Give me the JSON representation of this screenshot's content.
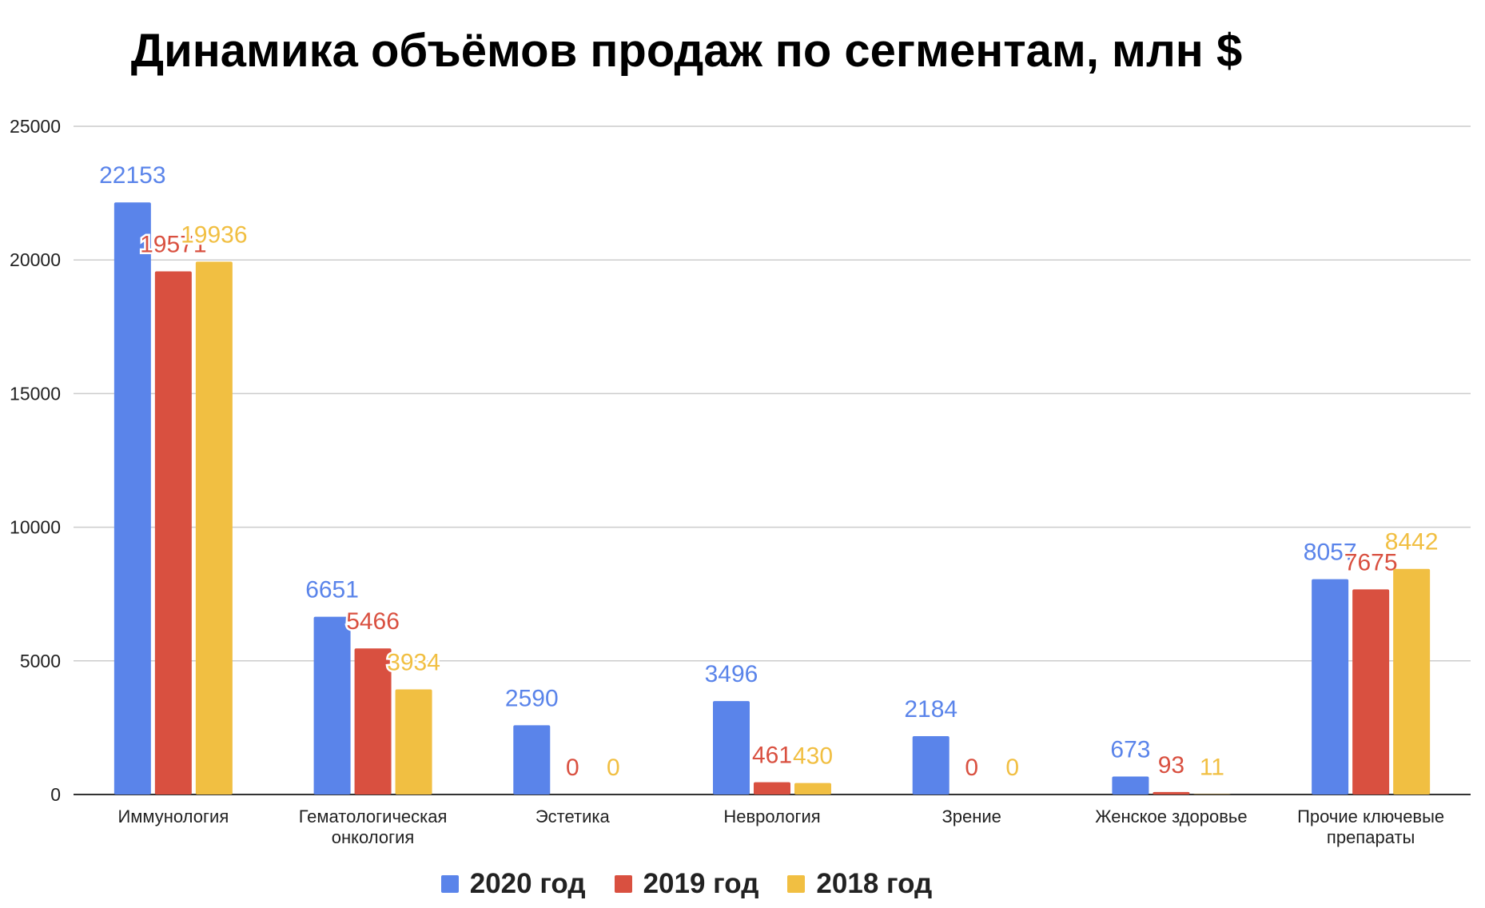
{
  "chart_data": {
    "type": "bar",
    "title": "Динамика объёмов продаж по сегментам, млн $",
    "xlabel": "",
    "ylabel": "",
    "ylim": [
      0,
      25000
    ],
    "yticks": [
      0,
      5000,
      10000,
      15000,
      20000,
      25000
    ],
    "grid": true,
    "legend_position": "bottom",
    "categories": [
      [
        "Иммунология"
      ],
      [
        "Гематологическая",
        "онкология"
      ],
      [
        "Эстетика"
      ],
      [
        "Неврология"
      ],
      [
        "Зрение"
      ],
      [
        "Женское здоровье"
      ],
      [
        "Прочие ключевые",
        "препараты"
      ]
    ],
    "series": [
      {
        "name": "2020 год",
        "color": "#5a84ea",
        "values": [
          22153,
          6651,
          2590,
          3496,
          2184,
          673,
          8057
        ]
      },
      {
        "name": "2019 год",
        "color": "#d95040",
        "values": [
          19571,
          5466,
          0,
          461,
          0,
          93,
          7675
        ]
      },
      {
        "name": "2018 год",
        "color": "#f1bf42",
        "values": [
          19936,
          3934,
          0,
          430,
          0,
          11,
          8442
        ]
      }
    ]
  }
}
